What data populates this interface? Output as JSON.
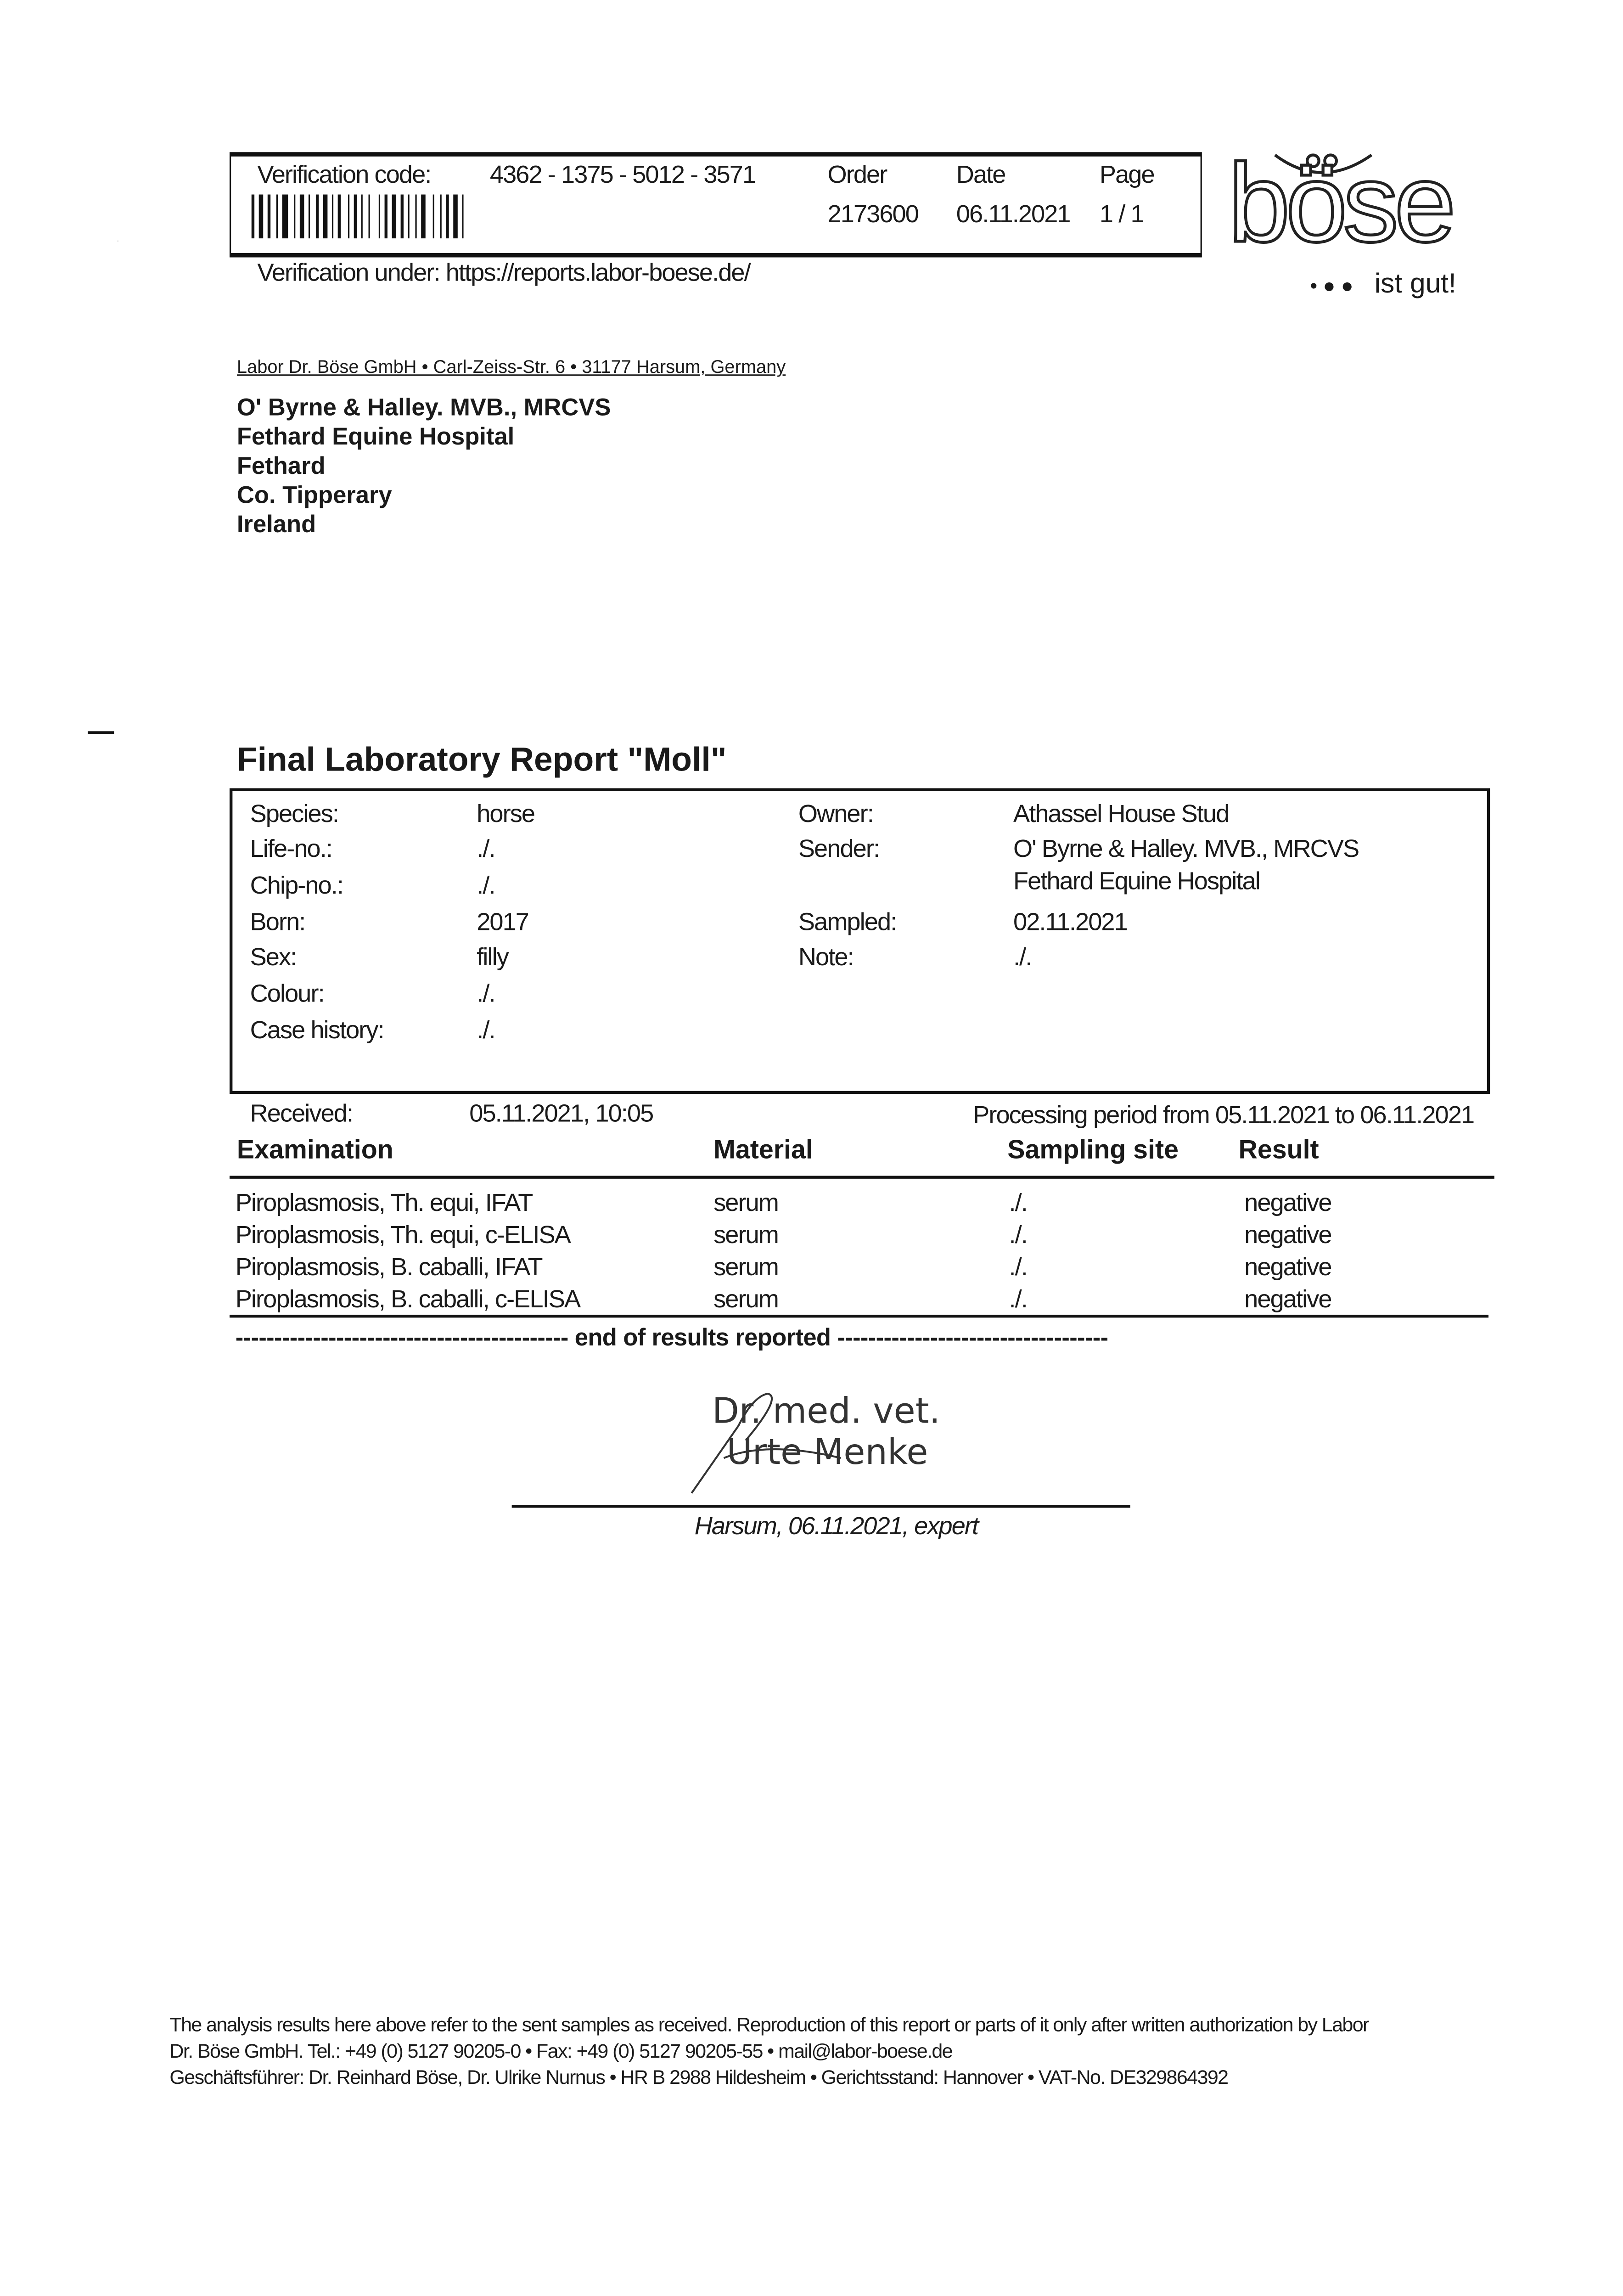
{
  "header": {
    "verification_label": "Verification code:",
    "verification_code": "4362 - 1375 - 5012 - 3571",
    "order_label": "Order",
    "order_value": "2173600",
    "date_label": "Date",
    "date_value": "06.11.2021",
    "page_label": "Page",
    "page_value": "1 / 1",
    "verification_url": "Verification under: https://reports.labor-boese.de/"
  },
  "logo": {
    "name": "böse",
    "tagline": "ist gut!"
  },
  "sender_line": "Labor Dr. Böse GmbH • Carl-Zeiss-Str. 6 • 31177 Harsum, Germany",
  "recipient": [
    "O' Byrne & Halley. MVB., MRCVS",
    "Fethard Equine Hospital",
    "Fethard",
    "Co. Tipperary",
    "Ireland"
  ],
  "title": "Final Laboratory Report \"Moll\"",
  "patient_left": [
    {
      "label": "Species:",
      "value": "horse"
    },
    {
      "label": "Life-no.:",
      "value": "./."
    },
    {
      "label": "Chip-no.:",
      "value": "./."
    },
    {
      "label": "Born:",
      "value": "2017"
    },
    {
      "label": "Sex:",
      "value": "filly"
    },
    {
      "label": "Colour:",
      "value": "./."
    },
    {
      "label": "Case history:",
      "value": "./."
    }
  ],
  "patient_right": [
    {
      "label": "Owner:",
      "value": "Athassel House Stud"
    },
    {
      "label": "Sender:",
      "value": "O' Byrne & Halley. MVB., MRCVS"
    },
    {
      "label": "",
      "value": "Fethard Equine Hospital"
    },
    {
      "label": "Sampled:",
      "value": "02.11.2021"
    },
    {
      "label": "Note:",
      "value": "./."
    }
  ],
  "received": {
    "label": "Received:",
    "value": "05.11.2021, 10:05",
    "processing": "Processing period from 05.11.2021 to 06.11.2021"
  },
  "results": {
    "headers": [
      "Examination",
      "Material",
      "Sampling site",
      "Result"
    ],
    "rows": [
      [
        "Piroplasmosis, Th. equi, IFAT",
        "serum",
        "./.",
        "negative"
      ],
      [
        "Piroplasmosis, Th. equi, c-ELISA",
        "serum",
        "./.",
        "negative"
      ],
      [
        "Piroplasmosis, B. caballi, IFAT",
        "serum",
        "./.",
        "negative"
      ],
      [
        "Piroplasmosis, B. caballi, c-ELISA",
        "serum",
        "./.",
        "negative"
      ]
    ],
    "end_text": "------------------------------------------- end of results reported -----------------------------------"
  },
  "signature": {
    "title": "Dr. med. vet.",
    "name": "Urte Menke",
    "caption": "Harsum, 06.11.2021, expert"
  },
  "footer": [
    "The analysis results here above refer to the sent samples as received. Reproduction of this report or parts of it only after written authorization by Labor",
    "Dr. Böse GmbH. Tel.: +49 (0) 5127 90205-0 • Fax: +49 (0) 5127 90205-55 • mail@labor-boese.de",
    "Geschäftsführer: Dr. Reinhard Böse, Dr. Ulrike Nurnus • HR B 2988 Hildesheim • Gerichtsstand: Hannover • VAT-No. DE329864392"
  ]
}
